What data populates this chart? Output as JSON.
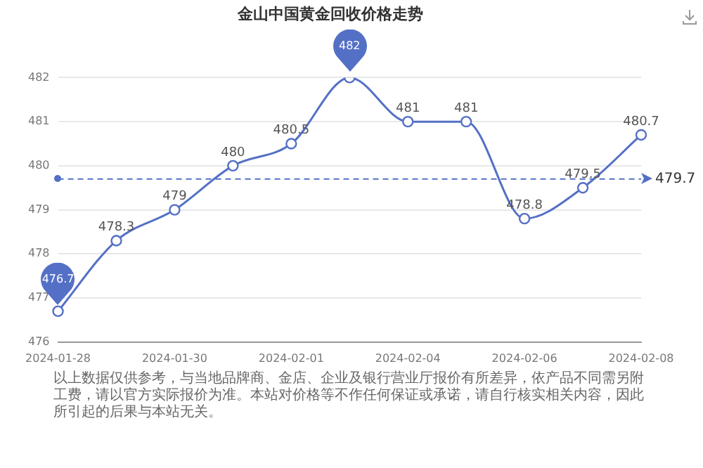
{
  "chart_data": {
    "type": "line",
    "title": "金山中国黄金回收价格走势",
    "categories": [
      "2024-01-28",
      null,
      "2024-01-30",
      null,
      "2024-02-01",
      null,
      "2024-02-04",
      null,
      "2024-02-06",
      null,
      "2024-02-08"
    ],
    "series": [
      {
        "color": "#5470c6",
        "values": [
          476.7,
          478.3,
          479,
          480,
          480.5,
          482,
          481,
          481,
          478.8,
          479.5,
          480.7
        ]
      }
    ],
    "ylim": [
      476,
      482
    ],
    "yticks": [
      476,
      477,
      478,
      479,
      480,
      481,
      482
    ],
    "grid": "y",
    "marker": "circle",
    "line_style": "solid",
    "data_labels": true,
    "legend": false,
    "ref_lines": [
      {
        "axis": "y",
        "value": 479.7,
        "label": "479.7",
        "color": "#5470c6",
        "line_style": "dashed"
      }
    ],
    "annotations": [
      "以上数据仅供参考，与当地品牌商、金店、企业及银行营业厅报价有所差异，依产品不同需另附工费，请以官方实际报价为准。本站对价格等不作任何保证或承诺，请自行核实相关内容，因此所引起的后果与本站无关。"
    ]
  }
}
